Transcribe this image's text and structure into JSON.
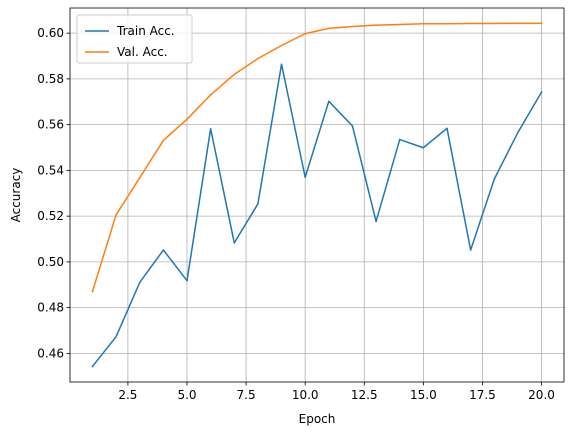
{
  "chart_data": {
    "type": "line",
    "title": "",
    "xlabel": "Epoch",
    "ylabel": "Accuracy",
    "xlim": [
      0.05,
      20.95
    ],
    "ylim": [
      0.4475,
      0.611
    ],
    "grid": true,
    "legend_position": "top-left",
    "x_ticks": [
      2.5,
      5.0,
      7.5,
      10.0,
      12.5,
      15.0,
      17.5,
      20.0
    ],
    "x_tick_labels": [
      "2.5",
      "5.0",
      "7.5",
      "10.0",
      "12.5",
      "15.0",
      "17.5",
      "20.0"
    ],
    "y_ticks": [
      0.46,
      0.48,
      0.5,
      0.52,
      0.54,
      0.56,
      0.58,
      0.6
    ],
    "y_tick_labels": [
      "0.46",
      "0.48",
      "0.50",
      "0.52",
      "0.54",
      "0.56",
      "0.58",
      "0.60"
    ],
    "x": [
      1,
      2,
      3,
      4,
      5,
      6,
      7,
      8,
      9,
      10,
      11,
      12,
      13,
      14,
      15,
      16,
      17,
      18,
      19,
      20
    ],
    "series": [
      {
        "name": "Train Acc.",
        "color": "#1f77b4",
        "values": [
          0.4543,
          0.4673,
          0.491,
          0.5052,
          0.4918,
          0.5582,
          0.5083,
          0.5254,
          0.5864,
          0.537,
          0.5702,
          0.5594,
          0.5177,
          0.5535,
          0.5499,
          0.5584,
          0.5052,
          0.5362,
          0.5566,
          0.5742
        ]
      },
      {
        "name": "Val. Acc.",
        "color": "#ff7f0e",
        "values": [
          0.487,
          0.5206,
          0.5368,
          0.5531,
          0.5624,
          0.573,
          0.582,
          0.5889,
          0.5946,
          0.5998,
          0.6021,
          0.6029,
          0.6035,
          0.6038,
          0.6041,
          0.6041,
          0.6042,
          0.6042,
          0.6043,
          0.6043
        ]
      }
    ]
  }
}
